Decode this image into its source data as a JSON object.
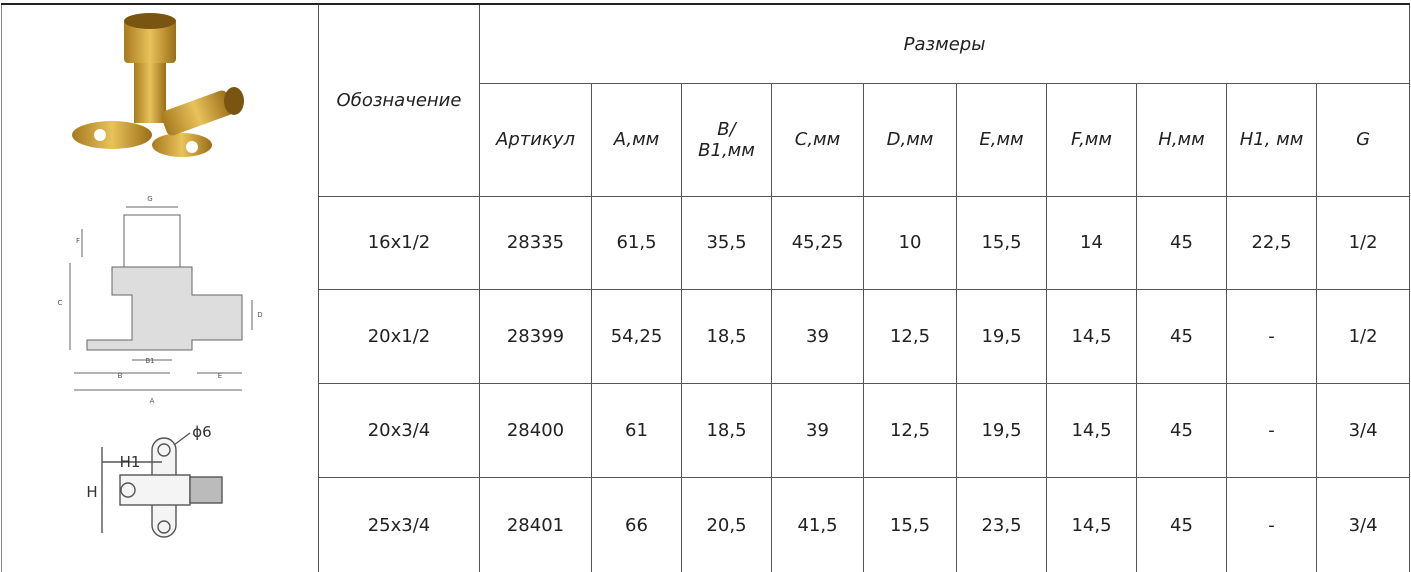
{
  "table": {
    "header": {
      "designation": "Обозначение",
      "group": "Размеры",
      "columns": [
        "Артикул",
        "A,мм",
        "B/ B1,мм",
        "C,мм",
        "D,мм",
        "E,мм",
        "F,мм",
        "H,мм",
        "H1, мм",
        "G"
      ]
    },
    "rows": [
      [
        "16x1/2",
        "28335",
        "61,5",
        "35,5",
        "45,25",
        "10",
        "15,5",
        "14",
        "45",
        "22,5",
        "1/2"
      ],
      [
        "20x1/2",
        "28399",
        "54,25",
        "18,5",
        "39",
        "12,5",
        "19,5",
        "14,5",
        "45",
        "-",
        "1/2"
      ],
      [
        "20x3/4",
        "28400",
        "61",
        "18,5",
        "39",
        "12,5",
        "19,5",
        "14,5",
        "45",
        "-",
        "3/4"
      ],
      [
        "25x3/4",
        "28401",
        "66",
        "20,5",
        "41,5",
        "15,5",
        "23,5",
        "14,5",
        "45",
        "-",
        "3/4"
      ]
    ]
  },
  "drawing": {
    "labels": [
      "G",
      "F",
      "C",
      "D",
      "B1",
      "B",
      "E",
      "A"
    ]
  },
  "plan": {
    "labels": [
      "H1",
      "H",
      "ϕ6"
    ]
  }
}
